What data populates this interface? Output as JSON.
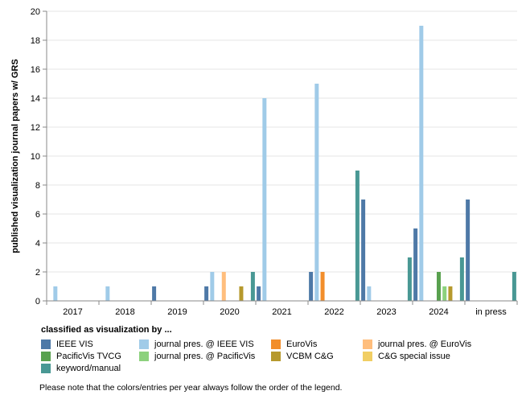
{
  "chart_data": {
    "type": "bar",
    "ylabel": "published visualization journal papers w/ GRS",
    "ylim": [
      0,
      20
    ],
    "yticks": [
      0,
      2,
      4,
      6,
      8,
      10,
      12,
      14,
      16,
      18,
      20
    ],
    "grid": true,
    "categories": [
      "2017",
      "2018",
      "2019",
      "2020",
      "2021",
      "2022",
      "2023",
      "2024",
      "in press"
    ],
    "series": [
      {
        "name": "IEEE VIS",
        "color": "#4e79a7",
        "values": [
          0,
          0,
          1,
          1,
          1,
          2,
          7,
          5,
          7
        ]
      },
      {
        "name": "journal pres. @ IEEE VIS",
        "color": "#a0cbe8",
        "values": [
          1,
          1,
          0,
          2,
          14,
          15,
          1,
          19,
          0
        ]
      },
      {
        "name": "EuroVis",
        "color": "#f28e2b",
        "values": [
          0,
          0,
          0,
          0,
          0,
          2,
          0,
          0,
          0
        ]
      },
      {
        "name": "journal pres. @ EuroVis",
        "color": "#ffbe7d",
        "values": [
          0,
          0,
          0,
          2,
          0,
          0,
          0,
          0,
          0
        ]
      },
      {
        "name": "PacificVis TVCG",
        "color": "#59a14f",
        "values": [
          0,
          0,
          0,
          0,
          0,
          0,
          0,
          2,
          0
        ]
      },
      {
        "name": "journal pres. @ PacificVis",
        "color": "#8cd17d",
        "values": [
          0,
          0,
          0,
          0,
          0,
          0,
          0,
          1,
          0
        ]
      },
      {
        "name": "VCBM C&G",
        "color": "#b6992d",
        "values": [
          0,
          0,
          0,
          1,
          0,
          0,
          0,
          1,
          0
        ]
      },
      {
        "name": "C&G special issue",
        "color": "#f1ce63",
        "values": [
          0,
          0,
          0,
          0,
          0,
          0,
          0,
          0,
          0
        ]
      },
      {
        "name": "keyword/manual",
        "color": "#499894",
        "values": [
          0,
          0,
          0,
          2,
          0,
          9,
          3,
          3,
          2
        ]
      }
    ]
  },
  "legend": {
    "title": "classified as visualization by ...",
    "note": "Please note that the colors/entries per year always follow the order of the legend."
  }
}
